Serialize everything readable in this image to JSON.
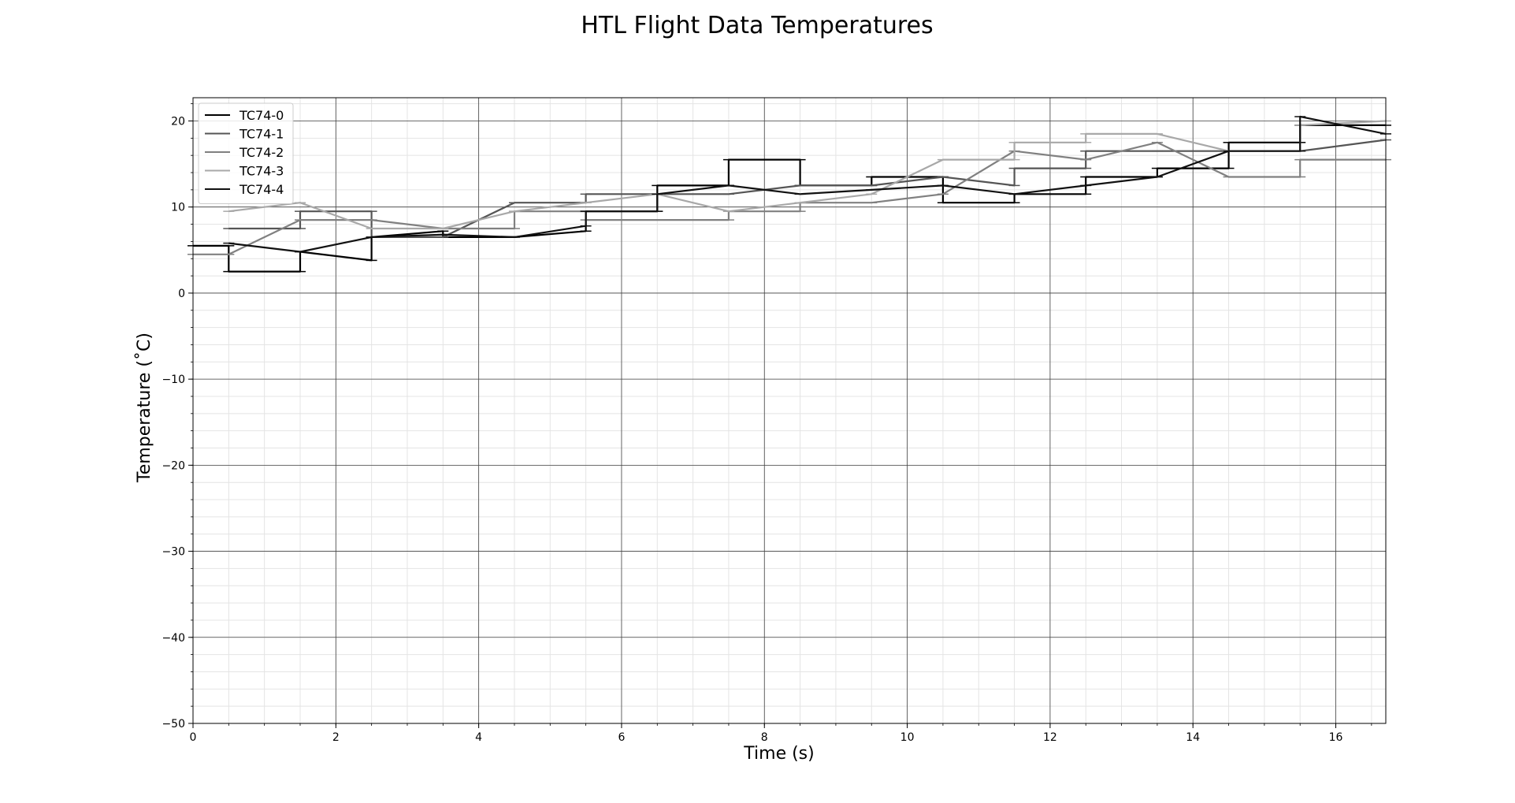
{
  "chart_data": {
    "type": "line",
    "title": "HTL Flight Data Temperatures",
    "xlabel": "Time (s)",
    "ylabel": "Temperature ($^\\circ$C)",
    "ylabel_display": "Temperature (˚C)",
    "xlim": [
      0,
      16.7
    ],
    "ylim": [
      -50,
      22.7
    ],
    "x_ticks": [
      0,
      2,
      4,
      6,
      8,
      10,
      12,
      14,
      16
    ],
    "y_ticks": [
      -50,
      -40,
      -30,
      -20,
      -10,
      0,
      10,
      20
    ],
    "x_tick_labels": [
      "0",
      "2",
      "4",
      "6",
      "8",
      "10",
      "12",
      "14",
      "16"
    ],
    "y_tick_labels": [
      "−50",
      "−40",
      "−30",
      "−20",
      "−10",
      "0",
      "10",
      "20"
    ],
    "grid": {
      "major": true,
      "minor": true
    },
    "legend": {
      "position": "top-left",
      "entries": [
        "TC74-0",
        "TC74-1",
        "TC74-2",
        "TC74-3",
        "TC74-4"
      ]
    },
    "series": [
      {
        "name": "TC74-0",
        "color": "#000000",
        "points": [
          [
            0,
            5.5
          ],
          [
            0.5,
            5.5
          ],
          [
            0.5,
            2.5
          ],
          [
            1.5,
            2.5
          ],
          [
            1.5,
            4.8
          ],
          [
            2.5,
            3.8
          ],
          [
            2.5,
            6.5
          ],
          [
            3.5,
            7.2
          ],
          [
            3.5,
            6.5
          ],
          [
            4.5,
            6.5
          ],
          [
            5.5,
            7.2
          ],
          [
            5.5,
            9.5
          ],
          [
            6.5,
            9.5
          ],
          [
            6.5,
            12.5
          ],
          [
            7.5,
            12.5
          ],
          [
            7.5,
            15.5
          ],
          [
            8.5,
            15.5
          ],
          [
            8.5,
            12.5
          ],
          [
            9.5,
            12.5
          ],
          [
            9.5,
            13.5
          ],
          [
            10.5,
            13.5
          ],
          [
            10.5,
            10.5
          ],
          [
            11.5,
            10.5
          ],
          [
            11.5,
            11.5
          ],
          [
            12.5,
            11.5
          ],
          [
            12.5,
            13.5
          ],
          [
            13.5,
            13.5
          ],
          [
            13.5,
            14.5
          ],
          [
            14.5,
            14.5
          ],
          [
            14.5,
            17.5
          ],
          [
            15.5,
            17.5
          ],
          [
            15.5,
            19.5
          ],
          [
            16.7,
            19.5
          ]
        ]
      },
      {
        "name": "TC74-1",
        "color": "#555555",
        "points": [
          [
            0.5,
            7.5
          ],
          [
            1.5,
            7.5
          ],
          [
            1.5,
            9.5
          ],
          [
            2.5,
            9.5
          ],
          [
            2.5,
            6.5
          ],
          [
            3.5,
            6.5
          ],
          [
            4.5,
            10.5
          ],
          [
            5.5,
            10.5
          ],
          [
            5.5,
            11.5
          ],
          [
            6.5,
            11.5
          ],
          [
            7.5,
            11.5
          ],
          [
            8.5,
            12.5
          ],
          [
            9.5,
            12.5
          ],
          [
            10.5,
            13.5
          ],
          [
            11.5,
            12.5
          ],
          [
            11.5,
            14.5
          ],
          [
            12.5,
            14.5
          ],
          [
            12.5,
            16.5
          ],
          [
            13.5,
            16.5
          ],
          [
            14.5,
            16.5
          ],
          [
            15.5,
            16.5
          ],
          [
            16.7,
            17.8
          ]
        ]
      },
      {
        "name": "TC74-2",
        "color": "#808080",
        "points": [
          [
            0,
            4.5
          ],
          [
            0.5,
            4.5
          ],
          [
            1.5,
            8.5
          ],
          [
            2.5,
            8.5
          ],
          [
            3.5,
            7.5
          ],
          [
            4.5,
            7.5
          ],
          [
            4.5,
            9.5
          ],
          [
            5.5,
            9.5
          ],
          [
            5.5,
            8.5
          ],
          [
            6.5,
            8.5
          ],
          [
            7.5,
            8.5
          ],
          [
            7.5,
            9.5
          ],
          [
            8.5,
            9.5
          ],
          [
            8.5,
            10.5
          ],
          [
            9.5,
            10.5
          ],
          [
            10.5,
            11.5
          ],
          [
            11.5,
            16.5
          ],
          [
            12.5,
            15.5
          ],
          [
            13.5,
            17.5
          ],
          [
            14.5,
            13.5
          ],
          [
            15.5,
            13.5
          ],
          [
            15.5,
            15.5
          ],
          [
            16.7,
            15.5
          ]
        ]
      },
      {
        "name": "TC74-3",
        "color": "#a8a8a8",
        "points": [
          [
            0.5,
            9.5
          ],
          [
            1.5,
            10.5
          ],
          [
            2.5,
            7.5
          ],
          [
            3.5,
            7.5
          ],
          [
            4.5,
            9.5
          ],
          [
            5.5,
            10.5
          ],
          [
            6.5,
            11.5
          ],
          [
            7.5,
            9.5
          ],
          [
            8.5,
            10.5
          ],
          [
            9.5,
            11.5
          ],
          [
            10.5,
            15.5
          ],
          [
            11.5,
            15.5
          ],
          [
            11.5,
            17.5
          ],
          [
            12.5,
            17.5
          ],
          [
            12.5,
            18.5
          ],
          [
            13.5,
            18.5
          ],
          [
            14.5,
            16.5
          ],
          [
            15.5,
            16.5
          ],
          [
            15.5,
            19.5
          ],
          [
            16.7,
            20.0
          ]
        ]
      },
      {
        "name": "TC74-4",
        "color": "#111111",
        "points": [
          [
            0.5,
            5.8
          ],
          [
            1.5,
            4.8
          ],
          [
            2.5,
            6.5
          ],
          [
            3.5,
            6.8
          ],
          [
            4.5,
            6.5
          ],
          [
            5.5,
            7.8
          ],
          [
            5.5,
            9.5
          ],
          [
            6.5,
            9.5
          ],
          [
            6.5,
            11.5
          ],
          [
            7.5,
            12.5
          ],
          [
            8.5,
            11.5
          ],
          [
            9.5,
            12.0
          ],
          [
            10.5,
            12.5
          ],
          [
            11.5,
            11.5
          ],
          [
            12.5,
            12.5
          ],
          [
            13.5,
            13.5
          ],
          [
            14.5,
            16.5
          ],
          [
            15.5,
            16.5
          ],
          [
            15.5,
            20.5
          ],
          [
            16.7,
            18.5
          ]
        ]
      }
    ]
  }
}
